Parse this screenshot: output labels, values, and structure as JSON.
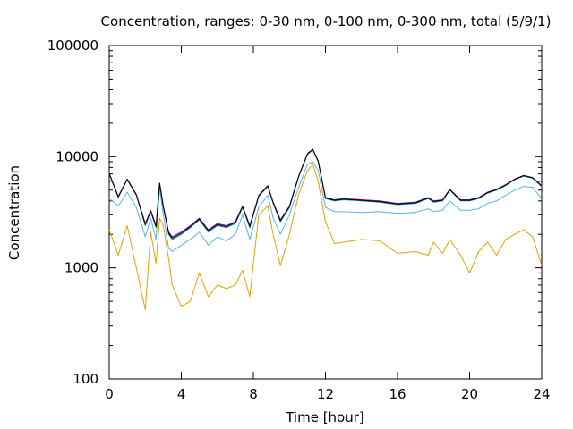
{
  "chart_data": {
    "type": "line",
    "title": "Concentration, ranges: 0-30 nm, 0-100 nm, 0-300 nm, total (5/9/1)",
    "xlabel": "Time [hour]",
    "ylabel": "Concentration",
    "xlim": [
      0,
      24
    ],
    "ylim": [
      100,
      100000
    ],
    "yscale": "log",
    "grid": false,
    "legend": "none",
    "x_ticks": [
      "0",
      "4",
      "8",
      "12",
      "16",
      "20",
      "24"
    ],
    "x_tick_values": [
      0,
      4,
      8,
      12,
      16,
      20,
      24
    ],
    "y_ticks": [
      "100",
      "1000",
      "10000",
      "100000"
    ],
    "y_tick_values": [
      100,
      1000,
      10000,
      100000
    ],
    "x": [
      0,
      0.5,
      1,
      1.5,
      2,
      2.3,
      2.6,
      2.8,
      3,
      3.3,
      3.5,
      4,
      4.5,
      5,
      5.5,
      6,
      6.5,
      7,
      7.4,
      7.8,
      8.3,
      8.8,
      9.1,
      9.5,
      10,
      10.5,
      11,
      11.3,
      11.6,
      12,
      12.5,
      13,
      14,
      15,
      16,
      17,
      17.7,
      18,
      18.5,
      18.9,
      19.5,
      20,
      20.5,
      21,
      21.5,
      22,
      22.5,
      23,
      23.5,
      24
    ],
    "series": [
      {
        "color": "#e6a000",
        "values": [
          2200,
          1300,
          2400,
          1000,
          420,
          2100,
          1100,
          2800,
          2400,
          1200,
          700,
          450,
          500,
          900,
          550,
          700,
          650,
          700,
          950,
          550,
          3000,
          3600,
          2000,
          1050,
          2000,
          4500,
          7500,
          8500,
          6000,
          2600,
          1650,
          1700,
          1800,
          1750,
          1350,
          1400,
          1300,
          1700,
          1350,
          1800,
          1300,
          900,
          1400,
          1700,
          1300,
          1800,
          2000,
          2200,
          1900,
          1050
        ]
      },
      {
        "color": "#56b4e9",
        "values": [
          4200,
          3600,
          4800,
          3500,
          1900,
          2800,
          1800,
          5200,
          3000,
          1500,
          1400,
          1600,
          1800,
          2100,
          1600,
          1900,
          1750,
          2000,
          3000,
          1800,
          3500,
          4500,
          2800,
          2000,
          3000,
          5200,
          8500,
          9000,
          7500,
          3500,
          3200,
          3200,
          3150,
          3200,
          3100,
          3150,
          3400,
          3200,
          3300,
          4000,
          3300,
          3300,
          3400,
          3800,
          4000,
          4500,
          5000,
          5400,
          5300,
          4200
        ]
      },
      {
        "color": "#009e73",
        "values": [
          7000,
          4300,
          6200,
          4500,
          2400,
          3200,
          2300,
          5700,
          3500,
          2000,
          1800,
          2000,
          2300,
          2700,
          2100,
          2400,
          2300,
          2500,
          3500,
          2300,
          4400,
          5400,
          3800,
          2600,
          3500,
          6500,
          10500,
          11500,
          9000,
          4200,
          4000,
          4100,
          4000,
          3900,
          3700,
          3800,
          4200,
          3900,
          4000,
          5000,
          4000,
          4000,
          4200,
          4700,
          5000,
          5500,
          6200,
          6700,
          6400,
          5400
        ]
      },
      {
        "color": "#9400d3",
        "values": [
          7100,
          4400,
          6300,
          4600,
          2500,
          3300,
          2400,
          5800,
          3600,
          2100,
          1900,
          2100,
          2400,
          2800,
          2200,
          2500,
          2400,
          2600,
          3600,
          2400,
          4500,
          5500,
          3900,
          2700,
          3600,
          6600,
          10700,
          11700,
          9200,
          4300,
          4100,
          4200,
          4100,
          4000,
          3800,
          3900,
          4300,
          4000,
          4100,
          5100,
          4100,
          4100,
          4300,
          4800,
          5100,
          5600,
          6300,
          6800,
          6500,
          5500
        ]
      },
      {
        "color": "#000000",
        "values": [
          7050,
          4350,
          6250,
          4550,
          2450,
          3250,
          2350,
          5750,
          3550,
          2050,
          1850,
          2050,
          2350,
          2750,
          2150,
          2450,
          2350,
          2550,
          3550,
          2350,
          4450,
          5450,
          3850,
          2650,
          3550,
          6550,
          10600,
          11600,
          9100,
          4250,
          4050,
          4150,
          4050,
          3950,
          3750,
          3850,
          4250,
          3950,
          4050,
          5050,
          4050,
          4050,
          4250,
          4750,
          5050,
          5550,
          6250,
          6750,
          6450,
          5450
        ]
      }
    ]
  }
}
